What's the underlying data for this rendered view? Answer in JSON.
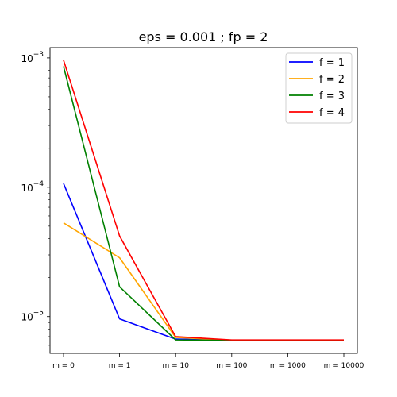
{
  "chart_data": {
    "type": "line",
    "title": "eps = 0.001 ; fp = 2",
    "xlabel": "",
    "ylabel": "",
    "yscale": "log",
    "ylim": [
      5.2e-06,
      0.0012
    ],
    "categories": [
      "m = 0",
      "m = 1",
      "m = 10",
      "m = 100",
      "m = 1000",
      "m = 10000"
    ],
    "y_ticks": [
      {
        "value": 1e-05,
        "base": "10",
        "exp": "−5"
      },
      {
        "value": 0.0001,
        "base": "10",
        "exp": "−4"
      },
      {
        "value": 0.001,
        "base": "10",
        "exp": "−3"
      }
    ],
    "legend_position": "upper right",
    "grid": false,
    "series": [
      {
        "name": "f = 1",
        "color": "#0000ff",
        "values": [
          0.000107,
          9.6e-06,
          6.7e-06,
          6.55e-06,
          6.55e-06,
          6.55e-06
        ]
      },
      {
        "name": "f = 2",
        "color": "#ffa500",
        "values": [
          5.3e-05,
          2.85e-05,
          6.9e-06,
          6.55e-06,
          6.55e-06,
          6.55e-06
        ]
      },
      {
        "name": "f = 3",
        "color": "#008000",
        "values": [
          0.00086,
          1.7e-05,
          6.6e-06,
          6.55e-06,
          6.55e-06,
          6.55e-06
        ]
      },
      {
        "name": "f = 4",
        "color": "#ff0000",
        "values": [
          0.00096,
          4.2e-05,
          7e-06,
          6.6e-06,
          6.6e-06,
          6.6e-06
        ]
      }
    ]
  }
}
